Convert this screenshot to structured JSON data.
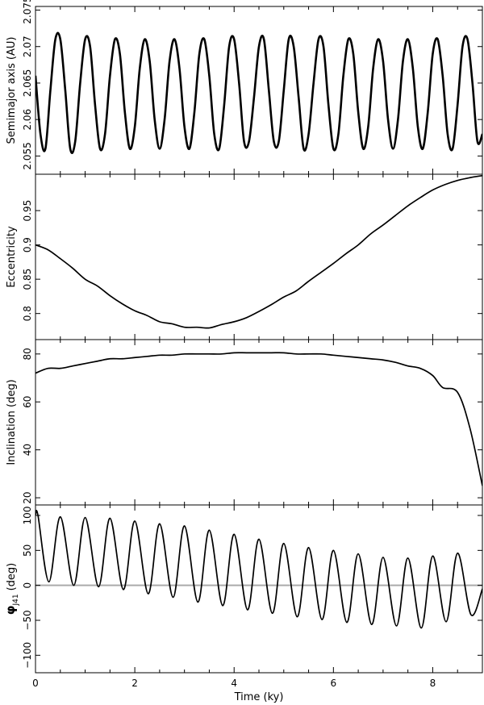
{
  "chart_data": {
    "type": "line",
    "xlabel": "Time (ky)",
    "xlim": [
      0,
      9
    ],
    "xticks": [
      0,
      2,
      4,
      6,
      8
    ],
    "xticks_minor_step": 0.5,
    "grid": false,
    "legend": "none",
    "line_color": "#000000",
    "panels": [
      {
        "id": "semimajor",
        "ylabel": "Semimajor axis (AU)",
        "ylim": [
          2.0525,
          2.0755
        ],
        "yticks": [
          2.055,
          2.06,
          2.065,
          2.07,
          2.075
        ],
        "ytick_labels": [
          "2.055",
          "2.06",
          "2.065",
          "2.07",
          "2.075"
        ],
        "series": [
          {
            "points": [
              [
                0,
                2.066
              ],
              [
                0.1,
                2.058
              ],
              [
                0.2,
                2.056
              ],
              [
                0.3,
                2.064
              ],
              [
                0.4,
                2.071
              ],
              [
                0.5,
                2.071
              ],
              [
                0.6,
                2.064
              ],
              [
                0.7,
                2.056
              ],
              [
                0.8,
                2.057
              ],
              [
                0.9,
                2.065
              ],
              [
                1.0,
                2.071
              ],
              [
                1.1,
                2.07
              ],
              [
                1.2,
                2.062
              ],
              [
                1.3,
                2.056
              ],
              [
                1.4,
                2.058
              ],
              [
                1.5,
                2.066
              ],
              [
                1.6,
                2.071
              ],
              [
                1.7,
                2.069
              ],
              [
                1.8,
                2.061
              ],
              [
                1.9,
                2.056
              ],
              [
                2.0,
                2.059
              ],
              [
                2.1,
                2.067
              ],
              [
                2.2,
                2.071
              ],
              [
                2.3,
                2.068
              ],
              [
                2.4,
                2.06
              ],
              [
                2.5,
                2.056
              ],
              [
                2.6,
                2.06
              ],
              [
                2.7,
                2.068
              ],
              [
                2.8,
                2.071
              ],
              [
                2.9,
                2.067
              ],
              [
                3.0,
                2.059
              ],
              [
                3.1,
                2.056
              ],
              [
                3.2,
                2.061
              ],
              [
                3.3,
                2.069
              ],
              [
                3.4,
                2.071
              ],
              [
                3.5,
                2.066
              ],
              [
                3.6,
                2.058
              ],
              [
                3.7,
                2.056
              ],
              [
                3.8,
                2.062
              ],
              [
                3.9,
                2.07
              ],
              [
                4.0,
                2.071
              ],
              [
                4.1,
                2.065
              ],
              [
                4.2,
                2.057
              ],
              [
                4.3,
                2.057
              ],
              [
                4.4,
                2.063
              ],
              [
                4.5,
                2.07
              ],
              [
                4.6,
                2.071
              ],
              [
                4.7,
                2.064
              ],
              [
                4.8,
                2.057
              ],
              [
                4.9,
                2.057
              ],
              [
                5.0,
                2.064
              ],
              [
                5.1,
                2.071
              ],
              [
                5.2,
                2.07
              ],
              [
                5.3,
                2.063
              ],
              [
                5.4,
                2.056
              ],
              [
                5.5,
                2.058
              ],
              [
                5.6,
                2.065
              ],
              [
                5.7,
                2.071
              ],
              [
                5.8,
                2.07
              ],
              [
                5.9,
                2.062
              ],
              [
                6.0,
                2.056
              ],
              [
                6.1,
                2.058
              ],
              [
                6.2,
                2.066
              ],
              [
                6.3,
                2.071
              ],
              [
                6.4,
                2.069
              ],
              [
                6.5,
                2.061
              ],
              [
                6.6,
                2.056
              ],
              [
                6.7,
                2.059
              ],
              [
                6.8,
                2.067
              ],
              [
                6.9,
                2.071
              ],
              [
                7.0,
                2.068
              ],
              [
                7.1,
                2.06
              ],
              [
                7.2,
                2.056
              ],
              [
                7.3,
                2.06
              ],
              [
                7.4,
                2.068
              ],
              [
                7.5,
                2.071
              ],
              [
                7.6,
                2.067
              ],
              [
                7.7,
                2.059
              ],
              [
                7.8,
                2.056
              ],
              [
                7.9,
                2.061
              ],
              [
                8.0,
                2.069
              ],
              [
                8.1,
                2.071
              ],
              [
                8.2,
                2.066
              ],
              [
                8.3,
                2.058
              ],
              [
                8.4,
                2.056
              ],
              [
                8.5,
                2.062
              ],
              [
                8.6,
                2.07
              ],
              [
                8.7,
                2.071
              ],
              [
                8.8,
                2.065
              ],
              [
                8.9,
                2.057
              ],
              [
                9.0,
                2.058
              ]
            ]
          }
        ]
      },
      {
        "id": "eccentricity",
        "ylabel": "Eccentricity",
        "ylim": [
          0.762,
          1.003
        ],
        "yticks": [
          0.8,
          0.85,
          0.9,
          0.95
        ],
        "ytick_labels": [
          "0.8",
          "0.85",
          "0.9",
          "0.95"
        ],
        "series": [
          {
            "points": [
              [
                0,
                0.9
              ],
              [
                0.25,
                0.893
              ],
              [
                0.5,
                0.88
              ],
              [
                0.75,
                0.866
              ],
              [
                1.0,
                0.85
              ],
              [
                1.25,
                0.84
              ],
              [
                1.5,
                0.826
              ],
              [
                1.75,
                0.814
              ],
              [
                2.0,
                0.804
              ],
              [
                2.25,
                0.797
              ],
              [
                2.5,
                0.788
              ],
              [
                2.75,
                0.785
              ],
              [
                3.0,
                0.78
              ],
              [
                3.25,
                0.78
              ],
              [
                3.5,
                0.779
              ],
              [
                3.75,
                0.784
              ],
              [
                4.0,
                0.788
              ],
              [
                4.25,
                0.794
              ],
              [
                4.5,
                0.803
              ],
              [
                4.75,
                0.813
              ],
              [
                5.0,
                0.824
              ],
              [
                5.25,
                0.833
              ],
              [
                5.5,
                0.847
              ],
              [
                5.75,
                0.86
              ],
              [
                6.0,
                0.873
              ],
              [
                6.25,
                0.887
              ],
              [
                6.5,
                0.9
              ],
              [
                6.75,
                0.916
              ],
              [
                7.0,
                0.929
              ],
              [
                7.25,
                0.943
              ],
              [
                7.5,
                0.957
              ],
              [
                7.75,
                0.969
              ],
              [
                8.0,
                0.98
              ],
              [
                8.25,
                0.988
              ],
              [
                8.5,
                0.994
              ],
              [
                8.75,
                0.998
              ],
              [
                9.0,
                1.001
              ]
            ]
          }
        ]
      },
      {
        "id": "inclination",
        "ylabel": "Inclination (deg)",
        "ylim": [
          17,
          86
        ],
        "yticks": [
          20,
          40,
          60,
          80
        ],
        "ytick_labels": [
          "20",
          "40",
          "60",
          "80"
        ],
        "series": [
          {
            "points": [
              [
                0,
                72
              ],
              [
                0.25,
                74
              ],
              [
                0.5,
                74
              ],
              [
                0.75,
                75
              ],
              [
                1.0,
                76
              ],
              [
                1.25,
                77
              ],
              [
                1.5,
                78
              ],
              [
                1.75,
                78
              ],
              [
                2.0,
                78.5
              ],
              [
                2.25,
                79
              ],
              [
                2.5,
                79.5
              ],
              [
                2.75,
                79.5
              ],
              [
                3.0,
                80
              ],
              [
                3.25,
                80
              ],
              [
                3.5,
                80
              ],
              [
                3.75,
                80
              ],
              [
                4.0,
                80.5
              ],
              [
                4.25,
                80.5
              ],
              [
                4.5,
                80.5
              ],
              [
                4.75,
                80.5
              ],
              [
                5.0,
                80.5
              ],
              [
                5.25,
                80
              ],
              [
                5.5,
                80
              ],
              [
                5.75,
                80
              ],
              [
                6.0,
                79.5
              ],
              [
                6.25,
                79
              ],
              [
                6.5,
                78.5
              ],
              [
                6.75,
                78
              ],
              [
                7.0,
                77.5
              ],
              [
                7.25,
                76.5
              ],
              [
                7.5,
                75
              ],
              [
                7.75,
                74
              ],
              [
                8.0,
                71
              ],
              [
                8.2,
                66
              ],
              [
                8.5,
                64
              ],
              [
                8.75,
                49
              ],
              [
                9.0,
                25
              ]
            ]
          }
        ]
      },
      {
        "id": "phi",
        "ylabel": "φ J41 (deg)",
        "ylabel_symbol": "φ",
        "ylabel_subscript": "J41",
        "ylabel_unit": "(deg)",
        "ylim": [
          -125,
          115
        ],
        "yticks": [
          -100,
          -50,
          0,
          50,
          100
        ],
        "ytick_labels": [
          "−100",
          "−50",
          "0",
          "50",
          "100"
        ],
        "reference_line": 0,
        "reference_line_color": "#aaaaaa",
        "series": [
          {
            "points": [
              [
                0,
                100
              ],
              [
                0.05,
                100
              ],
              [
                0.27,
                5
              ],
              [
                0.5,
                98
              ],
              [
                0.77,
                0
              ],
              [
                1.0,
                97
              ],
              [
                1.27,
                -2
              ],
              [
                1.5,
                96
              ],
              [
                1.77,
                -6
              ],
              [
                2.0,
                92
              ],
              [
                2.27,
                -12
              ],
              [
                2.5,
                88
              ],
              [
                2.77,
                -17
              ],
              [
                3.0,
                85
              ],
              [
                3.27,
                -24
              ],
              [
                3.5,
                79
              ],
              [
                3.77,
                -29
              ],
              [
                4.0,
                73
              ],
              [
                4.27,
                -35
              ],
              [
                4.5,
                66
              ],
              [
                4.77,
                -40
              ],
              [
                5.0,
                60
              ],
              [
                5.27,
                -45
              ],
              [
                5.5,
                54
              ],
              [
                5.77,
                -49
              ],
              [
                6.0,
                50
              ],
              [
                6.27,
                -53
              ],
              [
                6.5,
                45
              ],
              [
                6.77,
                -56
              ],
              [
                7.0,
                40
              ],
              [
                7.27,
                -58
              ],
              [
                7.5,
                39
              ],
              [
                7.77,
                -61
              ],
              [
                8.0,
                42
              ],
              [
                8.27,
                -52
              ],
              [
                8.5,
                46
              ],
              [
                8.77,
                -42
              ],
              [
                9.0,
                -5
              ]
            ]
          }
        ]
      }
    ]
  }
}
